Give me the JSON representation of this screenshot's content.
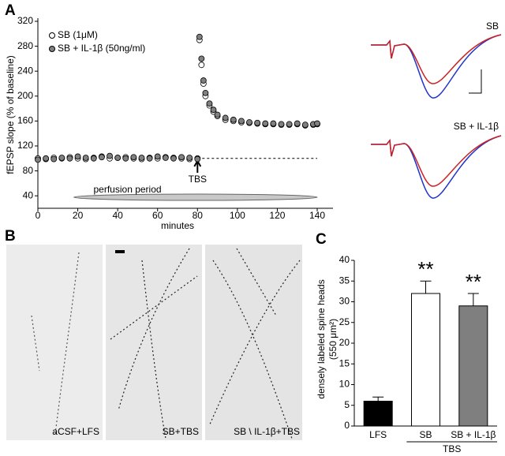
{
  "panel_labels": [
    "A",
    "B",
    "C"
  ],
  "chart_data": [
    {
      "type": "line",
      "x": [
        0,
        4,
        8,
        12,
        16,
        20,
        24,
        28,
        32,
        36,
        40,
        44,
        48,
        52,
        56,
        60,
        64,
        68,
        72,
        76,
        80,
        81,
        82,
        83,
        84,
        86,
        88,
        90,
        94,
        98,
        102,
        106,
        110,
        114,
        118,
        122,
        126,
        130,
        134,
        138,
        140
      ],
      "series": [
        {
          "name": "SB (1μM)",
          "color": "#ffffff",
          "values": [
            100,
            99,
            101,
            100,
            102,
            100,
            99,
            101,
            103,
            100,
            101,
            102,
            100,
            99,
            101,
            100,
            102,
            101,
            100,
            99,
            100,
            290,
            250,
            220,
            200,
            185,
            175,
            168,
            162,
            160,
            158,
            157,
            156,
            155,
            155,
            154,
            154,
            155,
            153,
            154,
            155
          ]
        },
        {
          "name": "SB + IL-1β (50ng/ml)",
          "color": "#808080",
          "values": [
            98,
            100,
            99,
            101,
            100,
            103,
            101,
            100,
            102,
            104,
            101,
            100,
            102,
            101,
            100,
            103,
            101,
            100,
            102,
            101,
            99,
            295,
            260,
            225,
            205,
            188,
            178,
            170,
            165,
            162,
            160,
            158,
            157,
            156,
            156,
            155,
            155,
            156,
            154,
            155,
            156
          ]
        }
      ],
      "xlabel": "minutes",
      "ylabel": "fEPSP slope (% of baseline)",
      "xlim": [
        0,
        140
      ],
      "ylim": [
        20,
        320
      ],
      "xticks": [
        0,
        20,
        40,
        60,
        80,
        100,
        120,
        140
      ],
      "yticks": [
        40,
        80,
        120,
        160,
        200,
        240,
        280,
        320
      ],
      "baseline": 100,
      "arrow": {
        "text": "TBS",
        "x": 80
      },
      "band": {
        "text": "perfusion period",
        "x": [
          18,
          140
        ]
      }
    },
    {
      "type": "bar",
      "categories": [
        "LFS",
        "SB",
        "SB + IL-1β"
      ],
      "values": [
        6,
        32,
        29
      ],
      "errors": [
        1,
        3,
        3
      ],
      "colors": [
        "#000000",
        "#ffffff",
        "#7f7f7f"
      ],
      "ylabel": [
        "densely labeled spine heads",
        "(550 μm²)"
      ],
      "ylim": [
        0,
        40
      ],
      "yticks": [
        0,
        5,
        10,
        15,
        20,
        25,
        30,
        35,
        40
      ],
      "significance": [
        {
          "category": "SB",
          "label": "**"
        },
        {
          "category": "SB + IL-1β",
          "label": "**"
        }
      ],
      "group": {
        "label": "TBS",
        "categories": [
          "SB",
          "SB + IL-1β"
        ]
      }
    }
  ],
  "traces": {
    "labels": [
      "SB",
      "SB + IL-1β"
    ]
  },
  "micrographs": {
    "labels": [
      "aCSF+LFS",
      "SB+TBS",
      "SB \\ IL-1β+TBS"
    ]
  }
}
